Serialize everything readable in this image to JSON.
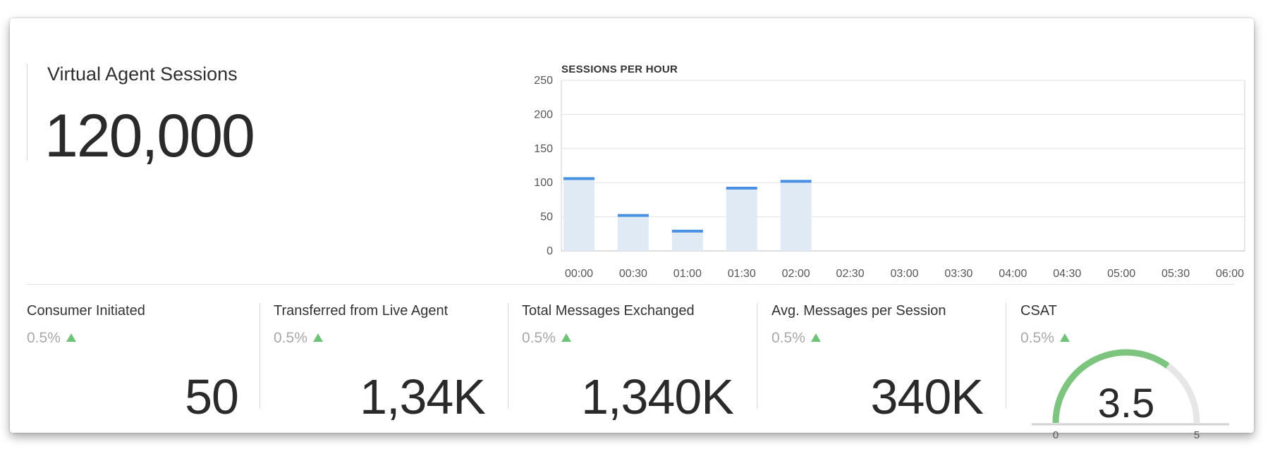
{
  "hero": {
    "title": "Virtual Agent Sessions",
    "value": "120,000"
  },
  "chart_data": {
    "type": "bar",
    "title": "SESSIONS PER HOUR",
    "categories": [
      "00:00",
      "00:30",
      "01:00",
      "01:30",
      "02:00",
      "02:30",
      "03:00",
      "03:30",
      "04:00",
      "04:30",
      "05:00",
      "05:30",
      "06:00"
    ],
    "values": [
      106,
      52,
      29,
      92,
      102,
      null,
      null,
      null,
      null,
      null,
      null,
      null,
      null
    ],
    "ylim": [
      0,
      250
    ],
    "yticks": [
      "0",
      "50",
      "100",
      "150",
      "200",
      "250"
    ],
    "grid": true,
    "colors": {
      "bar_fill": "#dfeaf5",
      "bar_cap": "#4a90e2",
      "grid": "#e3e3e3"
    }
  },
  "kpis": [
    {
      "title": "Consumer Initiated",
      "delta": "0.5%",
      "value": "50"
    },
    {
      "title": "Transferred from Live Agent",
      "delta": "0.5%",
      "value": "1,34K"
    },
    {
      "title": "Total Messages Exchanged",
      "delta": "0.5%",
      "value": "1,340K"
    },
    {
      "title": "Avg. Messages per Session",
      "delta": "0.5%",
      "value": "340K"
    }
  ],
  "csat": {
    "title": "CSAT",
    "delta": "0.5%",
    "value": "3.5",
    "score": 3.5,
    "min_label": "0",
    "max_label": "5",
    "max": 5,
    "colors": {
      "fill": "#7dc47f",
      "track": "#e6e6e6"
    }
  }
}
